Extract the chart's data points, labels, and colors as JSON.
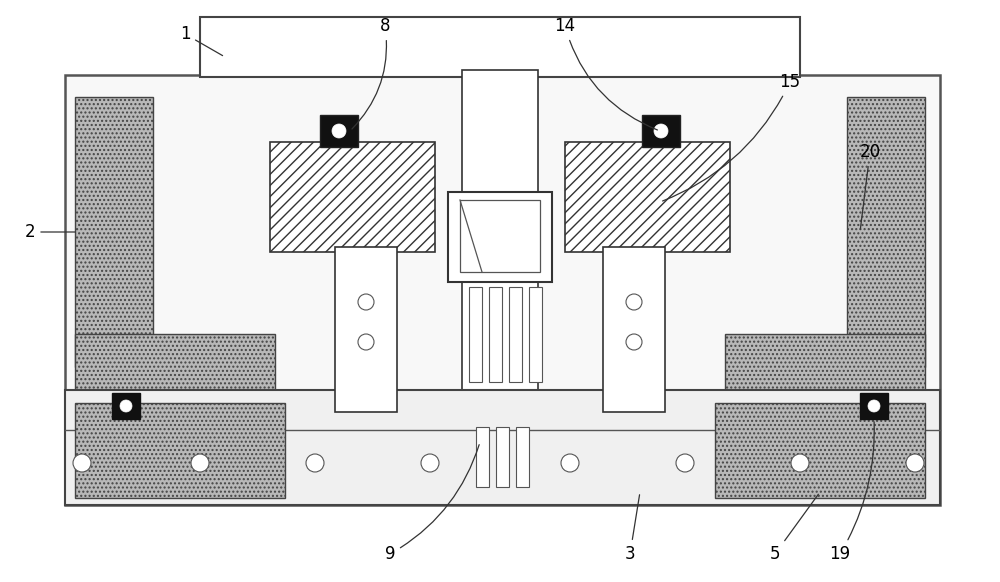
{
  "bg_color": "#ffffff",
  "line_color": "#333333",
  "gray_fill": "#b8b8b8",
  "light_fill": "#f8f8f8",
  "dark_fill": "#111111",
  "hatch_fill": "#ffffff",
  "label_fontsize": 12
}
